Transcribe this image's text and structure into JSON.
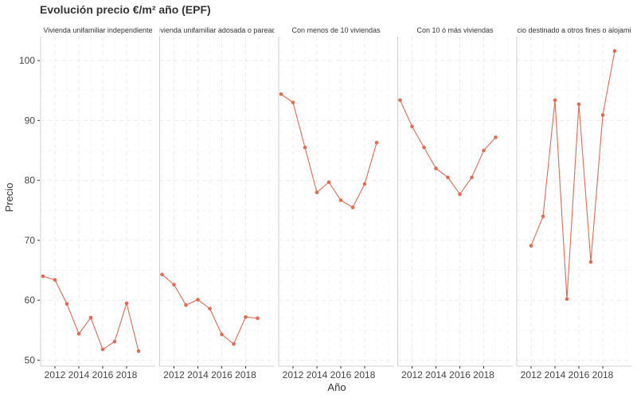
{
  "chart_data": {
    "type": "line",
    "title": "Evolución precio €/m² año (EPF)",
    "xlabel": "Año",
    "ylabel": "Precio",
    "x_ticks": [
      2012,
      2014,
      2016,
      2018
    ],
    "y_ticks": [
      50,
      60,
      70,
      80,
      90,
      100
    ],
    "xlim": [
      2010.8,
      2020.4
    ],
    "ylim": [
      49,
      104
    ],
    "grid": true,
    "colors": {
      "line": "#e16a55",
      "point": "#e16a55"
    },
    "panels": [
      {
        "label": "Vivienda unifamiliar independiente",
        "x": [
          2011,
          2012,
          2013,
          2014,
          2015,
          2016,
          2017,
          2018,
          2019
        ],
        "values": [
          64.0,
          63.4,
          59.4,
          54.4,
          57.1,
          51.8,
          53.1,
          59.5,
          51.5
        ]
      },
      {
        "label": "Vivienda unifamiliar adosada o pareada",
        "x": [
          2011,
          2012,
          2013,
          2014,
          2015,
          2016,
          2017,
          2018,
          2019
        ],
        "values": [
          64.3,
          62.6,
          59.2,
          60.1,
          58.6,
          54.3,
          52.7,
          57.2,
          57.0
        ]
      },
      {
        "label": "Con menos de 10 viviendas",
        "x": [
          2011,
          2012,
          2013,
          2014,
          2015,
          2016,
          2017,
          2018,
          2019
        ],
        "values": [
          94.4,
          93.0,
          85.5,
          78.0,
          79.7,
          76.7,
          75.5,
          79.4,
          86.3
        ]
      },
      {
        "label": "Con 10 ó más viviendas",
        "x": [
          2011,
          2012,
          2013,
          2014,
          2015,
          2016,
          2017,
          2018,
          2019
        ],
        "values": [
          93.4,
          89.0,
          85.5,
          82.0,
          80.5,
          77.7,
          80.5,
          85.0,
          87.2
        ]
      },
      {
        "label": "Edificio destinado a otros fines o alojamiento",
        "x": [
          2012,
          2013,
          2014,
          2015,
          2016,
          2017,
          2018,
          2019
        ],
        "values": [
          69.1,
          74.0,
          93.4,
          60.2,
          92.7,
          66.4,
          90.9,
          101.6
        ]
      }
    ]
  }
}
